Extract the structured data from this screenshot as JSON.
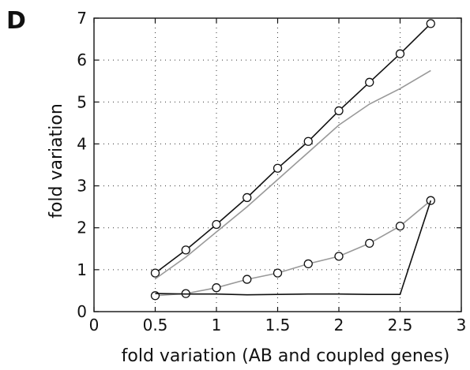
{
  "panel_label": "D",
  "chart_data": {
    "type": "line",
    "xlabel": "fold variation (AB and coupled genes)",
    "ylabel": "fold variation",
    "xlim": [
      0,
      3
    ],
    "ylim": [
      0,
      7
    ],
    "grid": true,
    "x_ticks": [
      "0",
      "0.5",
      "1",
      "1.5",
      "2",
      "2.5",
      "3"
    ],
    "y_ticks": [
      "0",
      "1",
      "2",
      "3",
      "4",
      "5",
      "6",
      "7"
    ],
    "series": [
      {
        "color": "#111111",
        "marker": "circle",
        "x": [
          0.5,
          0.75,
          1.0,
          1.25,
          1.5,
          1.75,
          2.0,
          2.25,
          2.5,
          2.75
        ],
        "y": [
          0.92,
          1.47,
          2.08,
          2.72,
          3.42,
          4.06,
          4.79,
          5.47,
          6.15,
          6.87
        ]
      },
      {
        "color": "#999999",
        "marker": "none",
        "x": [
          0.5,
          0.75,
          1.0,
          1.25,
          1.5,
          1.75,
          2.0,
          2.25,
          2.5,
          2.75
        ],
        "y": [
          0.78,
          1.3,
          1.9,
          2.5,
          3.15,
          3.8,
          4.45,
          4.95,
          5.32,
          5.75
        ]
      },
      {
        "color": "#999999",
        "marker": "circle",
        "x": [
          0.5,
          0.75,
          1.0,
          1.25,
          1.5,
          1.75,
          2.0,
          2.25,
          2.5,
          2.75
        ],
        "y": [
          0.38,
          0.43,
          0.57,
          0.77,
          0.92,
          1.14,
          1.32,
          1.63,
          2.04,
          2.65
        ]
      },
      {
        "color": "#111111",
        "marker": "none",
        "x": [
          0.5,
          0.75,
          1.0,
          1.25,
          1.5,
          1.75,
          2.0,
          2.25,
          2.5,
          2.75
        ],
        "y": [
          0.43,
          0.42,
          0.42,
          0.4,
          0.41,
          0.42,
          0.42,
          0.41,
          0.41,
          2.65
        ]
      }
    ]
  }
}
